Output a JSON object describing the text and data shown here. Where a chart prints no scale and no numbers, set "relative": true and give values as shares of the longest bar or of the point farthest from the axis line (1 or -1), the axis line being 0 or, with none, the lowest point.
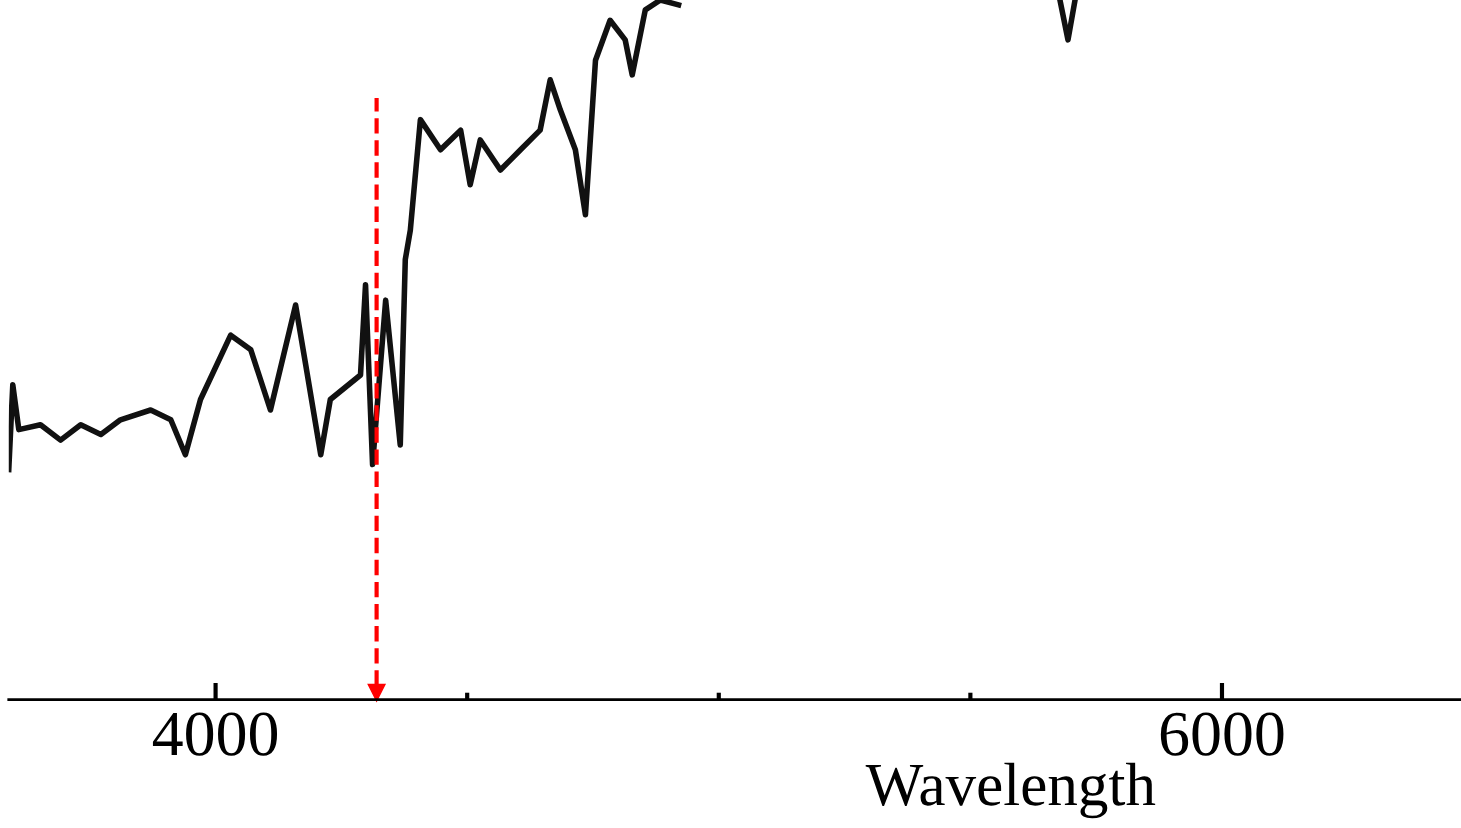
{
  "chart_data": {
    "type": "line",
    "relative": true,
    "xlabel": "Wavelength",
    "x": [
      3589,
      3597,
      3609,
      3652,
      3692,
      3732,
      3772,
      3811,
      3871,
      3911,
      3940,
      3970,
      4030,
      4070,
      4109,
      4159,
      4179,
      4209,
      4228,
      4288,
      4298,
      4312,
      4338,
      4367,
      4377,
      4387,
      4407,
      4447,
      4487,
      4506,
      4526,
      4566,
      4606,
      4645,
      4665,
      4685,
      4715,
      4735,
      4755,
      4784,
      4814,
      4828,
      4854,
      4884,
      4920,
      5000,
      5678,
      5694,
      5708
    ],
    "series": [
      {
        "color": "#111111",
        "values": [
          0.329,
          0.45,
          0.386,
          0.393,
          0.371,
          0.393,
          0.379,
          0.4,
          0.414,
          0.4,
          0.35,
          0.429,
          0.521,
          0.5,
          0.414,
          0.564,
          0.479,
          0.35,
          0.429,
          0.464,
          0.593,
          0.336,
          0.571,
          0.364,
          0.629,
          0.671,
          0.829,
          0.786,
          0.814,
          0.736,
          0.8,
          0.757,
          0.786,
          0.814,
          0.886,
          0.843,
          0.786,
          0.693,
          0.914,
          0.971,
          0.943,
          0.893,
          0.986,
          1,
          0.993,
          null,
          1,
          0.943,
          1
        ]
      }
    ],
    "xlim": [
      3589,
      6475
    ],
    "xticks": [
      4000,
      {
        "value": 4500,
        "label": null
      },
      {
        "value": 5000,
        "label": null
      },
      {
        "value": 5500,
        "label": null
      },
      6000
    ],
    "ref_lines": [
      {
        "axis": "x",
        "value": 4320,
        "color": "#ff0000",
        "line_style": "dashed"
      }
    ],
    "grid": false,
    "tick_labels": "x"
  }
}
